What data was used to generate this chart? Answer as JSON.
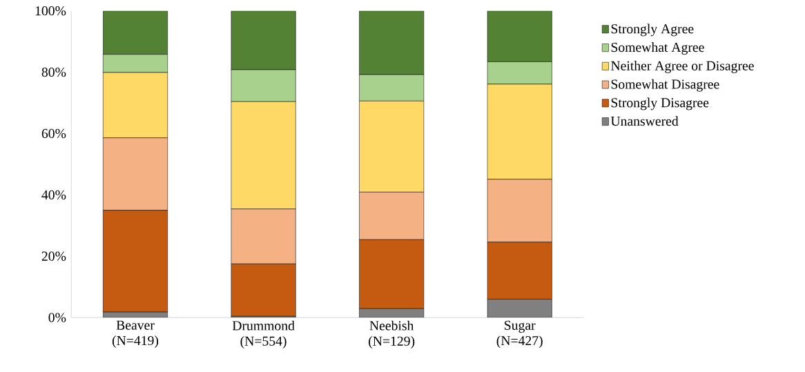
{
  "chart_data": {
    "type": "bar",
    "stacked": true,
    "categories": [
      "Beaver (N=419)",
      "Drummond (N=554)",
      "Neebish (N=129)",
      "Sugar (N=427)"
    ],
    "series": [
      {
        "name": "Unanswered",
        "color": "#808080",
        "values": [
          1.8,
          0.4,
          2.9,
          6.0
        ]
      },
      {
        "name": "Strongly Disagree",
        "color": "#c55a11",
        "values": [
          33.2,
          17.1,
          22.5,
          18.6
        ]
      },
      {
        "name": "Somewhat Disagree",
        "color": "#f4b183",
        "values": [
          23.6,
          17.9,
          15.5,
          20.5
        ]
      },
      {
        "name": "Neither Agree or Disagree",
        "color": "#ffd966",
        "values": [
          21.3,
          35.0,
          29.7,
          31.0
        ]
      },
      {
        "name": "Somewhat Agree",
        "color": "#a9d18e",
        "values": [
          5.9,
          10.4,
          8.6,
          7.3
        ]
      },
      {
        "name": "Strongly Agree",
        "color": "#548235",
        "values": [
          14.2,
          19.2,
          20.8,
          16.6
        ]
      }
    ],
    "ylim": [
      0,
      100
    ],
    "yticks": [
      {
        "value": 0,
        "label": "0%"
      },
      {
        "value": 20,
        "label": "20%"
      },
      {
        "value": 40,
        "label": "40%"
      },
      {
        "value": 60,
        "label": "60%"
      },
      {
        "value": 80,
        "label": "80%"
      },
      {
        "value": 100,
        "label": "100%"
      }
    ],
    "legend": "right",
    "grid": false
  }
}
